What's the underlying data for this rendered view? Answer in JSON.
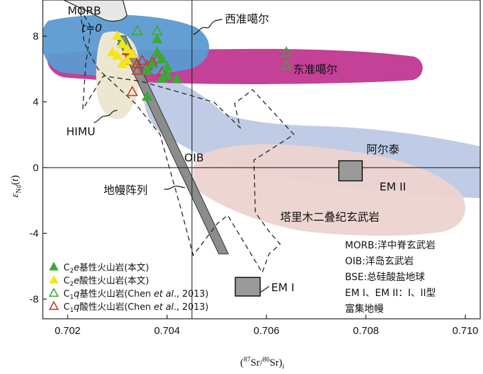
{
  "chart_data": {
    "type": "scatter",
    "xlabel_parts": [
      "(",
      "87",
      "Sr/",
      "86",
      "Sr)",
      "i"
    ],
    "ylabel_parts": [
      "ε",
      "Nd",
      "(",
      "t",
      ")"
    ],
    "xlim": [
      0.7015,
      0.7103
    ],
    "ylim": [
      -9.2,
      10.2
    ],
    "x_ticks": [
      0.702,
      0.704,
      0.706,
      0.708,
      0.71
    ],
    "x_tick_labels": [
      "0.702",
      "0.704",
      "0.706",
      "0.708",
      "0.710"
    ],
    "y_ticks": [
      -8,
      -4,
      0,
      4,
      8
    ],
    "y_tick_labels": [
      "-8",
      "-4",
      "0",
      "4",
      "8"
    ],
    "reference_lines": {
      "x": 0.7045,
      "y": 0
    },
    "regions": {
      "morb": "MORB",
      "t0": "t=0",
      "west_junggar": "西准噶尔",
      "east_junggar": "东准噶尔",
      "himu": "HIMU",
      "oib": "OIB",
      "altai": "阿尔泰",
      "em2": "EM II",
      "mantle_array": "地幔阵列",
      "tarim": "塔里木二叠纪玄武岩",
      "em1": "EM I"
    },
    "notes": [
      "MORB:洋中脊玄武岩",
      "OIB:洋岛玄武岩",
      "BSE:总硅酸盐地球",
      "EM I、EM II：I、II型",
      "富集地幔"
    ],
    "series": [
      {
        "name": "C₂e基性火山岩(本文)",
        "name_parts": [
          "C",
          "2",
          "e",
          "基性火山岩(本文)"
        ],
        "marker": "filled-triangle",
        "color": "#3aaa35",
        "points": [
          [
            0.7038,
            7.8
          ],
          [
            0.7038,
            7.0
          ],
          [
            0.7039,
            6.6
          ],
          [
            0.7037,
            6.3
          ],
          [
            0.704,
            6.1
          ],
          [
            0.7036,
            5.9
          ],
          [
            0.704,
            5.6
          ],
          [
            0.7039,
            5.4
          ],
          [
            0.7042,
            5.4
          ],
          [
            0.7036,
            4.3
          ]
        ]
      },
      {
        "name": "C₂e酸性火山岩(本文)",
        "name_parts": [
          "C",
          "2",
          "e",
          "酸性火山岩(本文)"
        ],
        "marker": "filled-triangle",
        "color": "#f6e51a",
        "points": [
          [
            0.703,
            8.0
          ],
          [
            0.7031,
            7.5
          ],
          [
            0.7029,
            7.0
          ],
          [
            0.703,
            6.8
          ],
          [
            0.7032,
            6.5
          ],
          [
            0.7031,
            6.3
          ],
          [
            0.7033,
            6.9
          ],
          [
            0.7032,
            7.2
          ]
        ]
      },
      {
        "name": "C₁q基性火山岩(Chen et al., 2013)",
        "name_parts": [
          "C",
          "1",
          "q",
          "基性火山岩(Chen ",
          "et al",
          "., 2013)"
        ],
        "marker": "open-triangle",
        "color": "#3aaa35",
        "points": [
          [
            0.7034,
            8.3
          ],
          [
            0.7038,
            8.3
          ],
          [
            0.7031,
            7.7
          ],
          [
            0.7064,
            7.0
          ],
          [
            0.7064,
            6.2
          ]
        ]
      },
      {
        "name": "C₁q酸性火山岩(Chen et al., 2013)",
        "name_parts": [
          "C",
          "1",
          "q",
          "酸性火山岩(Chen ",
          "et al",
          "., 2013)"
        ],
        "marker": "open-triangle",
        "color": "#c33b2a",
        "points": [
          [
            0.7032,
            7.1
          ],
          [
            0.7033,
            6.9
          ],
          [
            0.7032,
            6.5
          ],
          [
            0.7034,
            6.3
          ],
          [
            0.7035,
            6.5
          ],
          [
            0.7036,
            6.2
          ],
          [
            0.7037,
            6.4
          ],
          [
            0.7038,
            6.6
          ],
          [
            0.7034,
            5.9
          ],
          [
            0.7039,
            5.8
          ],
          [
            0.7036,
            5.9
          ],
          [
            0.7033,
            4.6
          ]
        ]
      }
    ]
  }
}
